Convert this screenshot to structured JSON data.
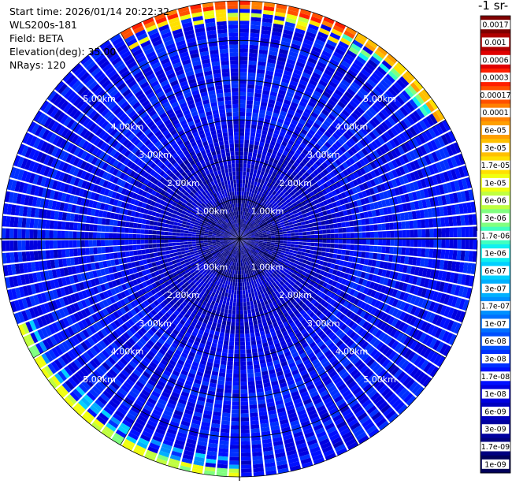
{
  "header": {
    "start_time": "Start time: 2026/01/14 20:22:32",
    "instrument": "WLS200s-181",
    "field": "Field: BETA",
    "elevation": "Elevation(deg): 35.00",
    "nrays": "NRays: 120"
  },
  "colorbar": {
    "title": "-1 sr-",
    "labels": [
      "0.0017",
      "0.001",
      "0.0006",
      "0.0003",
      "0.00017",
      "0.0001",
      "6e-05",
      "3e-05",
      "1.7e-05",
      "1e-05",
      "6e-06",
      "3e-06",
      "1.7e-06",
      "1e-06",
      "6e-07",
      "3e-07",
      "1.7e-07",
      "1e-07",
      "6e-08",
      "3e-08",
      "1.7e-08",
      "1e-08",
      "6e-09",
      "3e-09",
      "1.7e-09",
      "1e-09"
    ],
    "colors": [
      "#7f0000",
      "#b00000",
      "#e00000",
      "#ff2000",
      "#ff5000",
      "#ff8000",
      "#ff9f00",
      "#ffc000",
      "#ffe000",
      "#f0ff10",
      "#c0ff40",
      "#80ff80",
      "#40ffc0",
      "#10f0f0",
      "#00d0ff",
      "#00b0ff",
      "#0090ff",
      "#0070ff",
      "#0050ff",
      "#0030ff",
      "#0010ff",
      "#0000e0",
      "#0000c0",
      "#0000a0",
      "#000080",
      "#00005a"
    ]
  },
  "chart_data": {
    "type": "heatmap",
    "projection": "polar PPI",
    "field": "BETA",
    "elevation_deg": 35.0,
    "n_rays": 120,
    "range_rings_km": [
      1.0,
      2.0,
      3.0,
      4.0,
      5.0
    ],
    "ring_labels": [
      "1.00km",
      "2.00km",
      "3.00km",
      "4.00km",
      "5.00km"
    ],
    "max_range_km": 6.0,
    "azimuth_spokes_deg": [
      0,
      30,
      60,
      90,
      120,
      150,
      180,
      210,
      240,
      270,
      300,
      330
    ],
    "background_level": "1e-08",
    "near_field_level": "1.7e-09",
    "edge_enhancement": [
      {
        "azimuth_deg_range": [
          330,
          30
        ],
        "level": "0.0003"
      },
      {
        "azimuth_deg_range": [
          20,
          60
        ],
        "level": "6e-05"
      },
      {
        "azimuth_deg_range": [
          180,
          250
        ],
        "level": "1e-05"
      }
    ]
  }
}
